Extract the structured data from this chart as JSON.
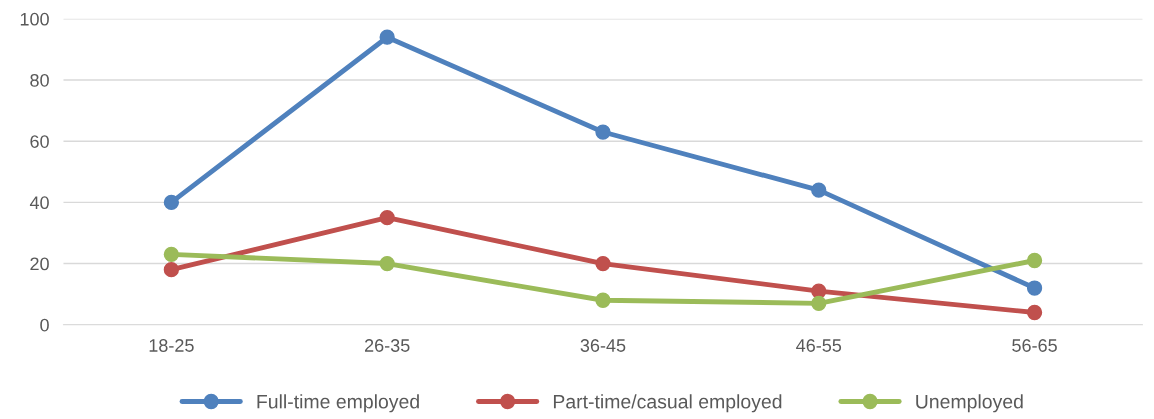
{
  "chart_data": {
    "type": "line",
    "categories": [
      "18-25",
      "26-35",
      "36-45",
      "46-55",
      "56-65"
    ],
    "series": [
      {
        "name": "Full-time employed",
        "color": "#4f81bd",
        "values": [
          40,
          94,
          63,
          44,
          12
        ]
      },
      {
        "name": "Part-time/casual employed",
        "color": "#c0504d",
        "values": [
          18,
          35,
          20,
          11,
          4
        ]
      },
      {
        "name": "Unemployed",
        "color": "#9bbb59",
        "values": [
          23,
          20,
          8,
          7,
          21
        ]
      }
    ],
    "ylim": [
      0,
      100
    ],
    "yticks": [
      0,
      20,
      40,
      60,
      80,
      100
    ],
    "grid": "y",
    "legend": "bottom",
    "marker": "circle",
    "line_style": "solid"
  }
}
